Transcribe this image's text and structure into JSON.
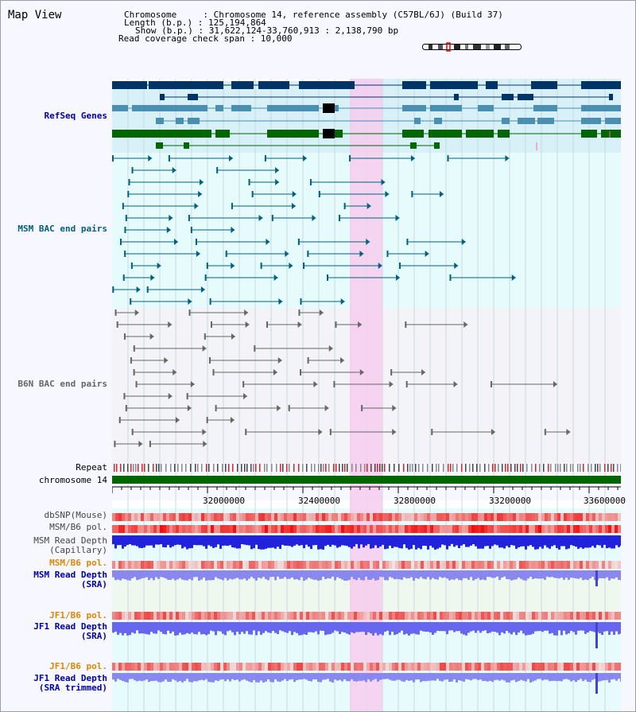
{
  "title": "Map View",
  "info": {
    "chromosome": "Chromosome     : Chromosome 14, reference assembly (C57BL/6J) (Build 37)",
    "length": "Length (b.p.) : 125,194,864",
    "show": "Show (b.p.) : 31,622,124-33,760,913 : 2,138,790 bp",
    "coverage": "Read coverage check span : 10,000"
  },
  "tracks": {
    "refseq": "RefSeq Genes",
    "msm_bac": "MSM BAC end pairs",
    "b6n_bac": "B6N BAC end pairs",
    "repeat": "Repeat",
    "chrom": "chromosome 14",
    "dbsnp": "dbSNP(Mouse)",
    "msm_pol": "MSM/B6 pol.",
    "msm_depth_cap": "MSM Read Depth\n(Capillary)",
    "msm_pol2": "MSM/B6 pol.",
    "msm_depth_sra": "MSM Read Depth\n(SRA)",
    "jf1_pol": "JF1/B6 pol.",
    "jf1_depth_sra": "JF1 Read Depth\n(SRA)",
    "jf1_pol2": "JF1/B6 pol.",
    "jf1_depth_trim": "JF1 Read Depth\n(SRA trimmed)"
  },
  "axis": {
    "ticks": [
      "32000000",
      "32400000",
      "32800000",
      "33200000",
      "33600000"
    ]
  },
  "colors": {
    "refseq_label": "#0000aa",
    "msm_label": "#006080",
    "b6n_label": "#666666",
    "gold_label": "#dd8800",
    "navy_label": "#0000aa",
    "highlight": "#f8d4f0"
  }
}
